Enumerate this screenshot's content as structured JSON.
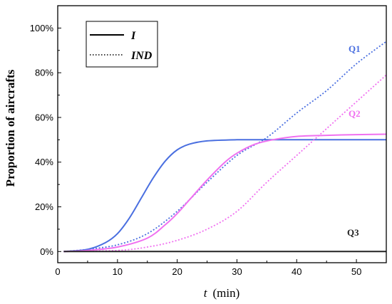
{
  "chart_data": {
    "type": "line",
    "title": "",
    "xlabel_var": "t",
    "xlabel_unit": "(min)",
    "ylabel": "Proportion of aircrafts",
    "xlim": [
      0,
      55
    ],
    "ylim": [
      -0.05,
      1.1
    ],
    "x_ticks": [
      0,
      10,
      20,
      30,
      40,
      50
    ],
    "y_ticks": [
      0,
      0.2,
      0.4,
      0.6,
      0.8,
      1.0
    ],
    "y_tick_labels": [
      "0%",
      "20%",
      "40%",
      "60%",
      "80%",
      "100%"
    ],
    "grid": false,
    "legend": {
      "position": "top-left",
      "entries": [
        {
          "label": "I",
          "style": "solid"
        },
        {
          "label": "IND",
          "style": "dotted"
        }
      ]
    },
    "annotations": [
      {
        "text": "Q1",
        "color": "#4a6fe0"
      },
      {
        "text": "Q2",
        "color": "#f070f0"
      },
      {
        "text": "Q3",
        "color": "#222222"
      }
    ],
    "series": [
      {
        "group": "Q1",
        "style": "solid",
        "color": "#4a6fe0",
        "x": [
          1,
          5,
          8,
          10,
          12,
          14,
          16,
          18,
          20,
          22,
          25,
          30,
          35,
          40,
          45,
          50,
          55
        ],
        "y": [
          0.0,
          0.01,
          0.04,
          0.08,
          0.15,
          0.24,
          0.33,
          0.405,
          0.455,
          0.48,
          0.495,
          0.5,
          0.5,
          0.5,
          0.5,
          0.5,
          0.5
        ]
      },
      {
        "group": "Q1",
        "style": "dotted",
        "color": "#4a6fe0",
        "x": [
          1,
          5,
          10,
          15,
          20,
          25,
          30,
          35,
          40,
          45,
          50,
          55
        ],
        "y": [
          0.0,
          0.01,
          0.03,
          0.08,
          0.18,
          0.31,
          0.43,
          0.51,
          0.62,
          0.72,
          0.84,
          0.94
        ]
      },
      {
        "group": "Q2",
        "style": "solid",
        "color": "#f070f0",
        "x": [
          1,
          5,
          10,
          15,
          18,
          20,
          22,
          25,
          28,
          30,
          33,
          36,
          40,
          45,
          50,
          55
        ],
        "y": [
          0.0,
          0.005,
          0.02,
          0.06,
          0.12,
          0.17,
          0.23,
          0.32,
          0.4,
          0.44,
          0.48,
          0.5,
          0.515,
          0.52,
          0.523,
          0.525
        ]
      },
      {
        "group": "Q2",
        "style": "dotted",
        "color": "#f070f0",
        "x": [
          1,
          10,
          15,
          20,
          25,
          30,
          35,
          40,
          45,
          50,
          55
        ],
        "y": [
          0.0,
          0.005,
          0.02,
          0.05,
          0.1,
          0.18,
          0.31,
          0.43,
          0.55,
          0.67,
          0.79
        ]
      },
      {
        "group": "Q3",
        "style": "solid",
        "color": "#222222",
        "x": [
          1,
          55
        ],
        "y": [
          0.0,
          0.0
        ]
      }
    ]
  }
}
